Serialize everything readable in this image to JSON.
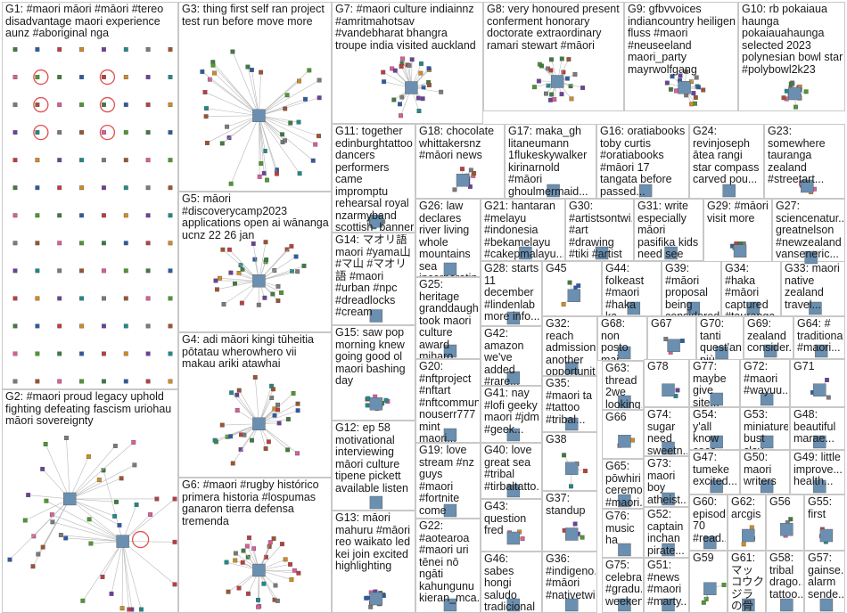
{
  "title": "",
  "colors": {
    "edge": "#b9b9b9",
    "node_palette": [
      "#3b7d3b",
      "#2b5aa8",
      "#c23b3b",
      "#d68a1c",
      "#6b3fa0",
      "#1c8a8a",
      "#7a7a7a",
      "#a0522d",
      "#e05a9a",
      "#4c9a2a"
    ],
    "ring": "#e05050",
    "border": "#c8c8c8"
  },
  "groups": [
    {
      "id": "G1",
      "label": "G1: #maori māori #māori #tereo disadvantage maori experience aunz #aboriginal nga",
      "kind": "grid"
    },
    {
      "id": "G2",
      "label": "G2: #maori proud legacy uphold fighting defeating fascism uriohau māori sovereignty",
      "kind": "double"
    },
    {
      "id": "G3",
      "label": "G3: thing first self ran project test run before move more",
      "kind": "star"
    },
    {
      "id": "G4",
      "label": "G4: adi māori kingi tūheitia pōtatau wherowhero vii makau ariki atawhai",
      "kind": "star"
    },
    {
      "id": "G5",
      "label": "G5: māori #discoverycamp2023 applications open ai wānanga ucnz 22 26 jan",
      "kind": "cluster"
    },
    {
      "id": "G6",
      "label": "G6: #maori #rugby histórico primera historia #lospumas ganaron tierra defensa tremenda",
      "kind": "cluster"
    },
    {
      "id": "G7",
      "label": "G7: #maori culture indiainnz #amritmahotsav #vandebharat bhangra troupe india visited auckland",
      "kind": "cluster"
    },
    {
      "id": "G8",
      "label": "G8: very honoured present conferment honorary doctorate extraordinary ramari stewart #māori",
      "kind": "cluster"
    },
    {
      "id": "G9",
      "label": "G9: gfbvvoices indiancountry heiligen fluss #maori #neuseeland maori_party mayrwolfgang",
      "kind": "cluster"
    },
    {
      "id": "G10",
      "label": "G10: rb pokaiaua haunga pokaiauahaunga selected 2023 polynesian bowl star #polybowl2k23",
      "kind": "cluster"
    },
    {
      "id": "G11",
      "label": "G11: together edinburghtattoo dancers performers came impromptu rehearsal royal nzarmyband scottish_banner",
      "kind": "cluster"
    },
    {
      "id": "G12",
      "label": "G12: ep 58 motivational interviewing māori culture tipene pickett available listen",
      "kind": "cluster"
    },
    {
      "id": "G13",
      "label": "G13: māori mahuru #māori reo waikato led kei join excited highlighting",
      "kind": "cluster"
    },
    {
      "id": "G14",
      "label": "G14: マオリ語 maori #yama山 #マ山 #マオリ語 #maori #urban #npc #dreadlocks #cream",
      "kind": "cluster"
    },
    {
      "id": "G15",
      "label": "G15: saw pop morning knew going good ol maori bashing day",
      "kind": "cluster"
    },
    {
      "id": "G16",
      "label": "G16: oratiabooks toby curtis #oratiabooks #māori 17 tangata before passed...",
      "kind": "cluster"
    },
    {
      "id": "G17",
      "label": "G17: maka_gh litaneumann 1flukeskywalker kirinarnold #māori ghoulmermaid...",
      "kind": "cluster"
    },
    {
      "id": "G18",
      "label": "G18: chocolate whittakersnz #māori news",
      "kind": "cluster"
    },
    {
      "id": "G19",
      "label": "G19: love stream #nz guys #maori #fortnite come support see show",
      "kind": "cluster"
    },
    {
      "id": "G20",
      "label": "G20: #nftproject #nftart #nftcommun... nouserr777 mint maori...",
      "kind": "cluster"
    },
    {
      "id": "G21",
      "label": "G21: hantaran #melayu #indonesia #bekamelayu #cakepmalayu...",
      "kind": "cluster"
    },
    {
      "id": "G22",
      "label": "G22: #aotearoa #maori uri tēnei nō ngāti kahungunu kieran_mca...",
      "kind": "cluster"
    },
    {
      "id": "G23",
      "label": "G23: somewhere tauranga zealand #streetart...",
      "kind": "cluster"
    },
    {
      "id": "G24",
      "label": "G24: revinjoseph ātea rangi star compass carved pou...",
      "kind": "cluster"
    },
    {
      "id": "G25",
      "label": "G25: heritage granddaugh... took maori culture award miharo...",
      "kind": "cluster"
    },
    {
      "id": "G26",
      "label": "G26: law declares river living whole mountains sea incorporatin...",
      "kind": "cluster"
    },
    {
      "id": "G27",
      "label": "G27: sciencenatur... greatnelson #newzealand vanseneric...",
      "kind": "cluster"
    },
    {
      "id": "G28",
      "label": "G28: starts 11 december #lindenlab more info...",
      "kind": "cluster"
    },
    {
      "id": "G29",
      "label": "G29: #māori visit more",
      "kind": "cluster"
    },
    {
      "id": "G30",
      "label": "G30: #artistsontwi... #art #drawing #tiki #artist #artwork...",
      "kind": "cluster"
    },
    {
      "id": "G31",
      "label": "G31: write especially māori pasifika kids need see more...",
      "kind": "cluster"
    },
    {
      "id": "G32",
      "label": "G32: reach admission another opportunit...",
      "kind": "cluster"
    },
    {
      "id": "G33",
      "label": "G33: maori native zealand travel...",
      "kind": "cluster"
    },
    {
      "id": "G34",
      "label": "G34: #haka #māori captured #tauranga...",
      "kind": "cluster"
    },
    {
      "id": "G35",
      "label": "G35: #maori ta #tattoo #tribal...",
      "kind": "cluster"
    },
    {
      "id": "G36",
      "label": "G36: #indigeno... #māori #nativetwi...",
      "kind": "cluster"
    },
    {
      "id": "G37",
      "label": "G37: standup",
      "kind": "cluster"
    },
    {
      "id": "G38",
      "label": "G38",
      "kind": "cluster"
    },
    {
      "id": "G39",
      "label": "G39: #māori proposal being considered...",
      "kind": "cluster"
    },
    {
      "id": "G40",
      "label": "G40: love great sea #tribal #tirbaltatto...",
      "kind": "cluster"
    },
    {
      "id": "G41",
      "label": "G41: nay #lofi geeky maori #jdm #geek...",
      "kind": "cluster"
    },
    {
      "id": "G42",
      "label": "G42: amazon we've added #rare...",
      "kind": "cluster"
    },
    {
      "id": "G43",
      "label": "G43: question fred",
      "kind": "cluster"
    },
    {
      "id": "G44",
      "label": "G44: folkeast #maori #haka ka...",
      "kind": "cluster"
    },
    {
      "id": "G45",
      "label": "G45",
      "kind": "cluster"
    },
    {
      "id": "G46",
      "label": "G46: sabes hongi saludo tradicional maorí...",
      "kind": "cluster"
    },
    {
      "id": "G47",
      "label": "G47: tumeke excited...",
      "kind": "cluster"
    },
    {
      "id": "G48",
      "label": "G48: beautiful marae...",
      "kind": "cluster"
    },
    {
      "id": "G49",
      "label": "G49: little improve... health...",
      "kind": "cluster"
    },
    {
      "id": "G50",
      "label": "G50: maori writers",
      "kind": "cluster"
    },
    {
      "id": "G51",
      "label": "G51: #news #maori #marty...",
      "kind": "cluster"
    },
    {
      "id": "G52",
      "label": "G52: captain inchan pirate...",
      "kind": "cluster"
    },
    {
      "id": "G53",
      "label": "G53: miniature bust clay...",
      "kind": "cluster"
    },
    {
      "id": "G54",
      "label": "G54: y'all know coco solid...",
      "kind": "cluster"
    },
    {
      "id": "G55",
      "label": "G55: first",
      "kind": "cluster"
    },
    {
      "id": "G56",
      "label": "G56",
      "kind": "cluster"
    },
    {
      "id": "G57",
      "label": "G57: gainse... alarm sende...",
      "kind": "cluster"
    },
    {
      "id": "G58",
      "label": "G58: tribal drago... tattoo...",
      "kind": "cluster"
    },
    {
      "id": "G59",
      "label": "G59",
      "kind": "cluster"
    },
    {
      "id": "G60",
      "label": "G60: episode 70 #read...",
      "kind": "cluster"
    },
    {
      "id": "G61",
      "label": "G61: マッコウクジラの骨でハワイ...",
      "kind": "cluster"
    },
    {
      "id": "G62",
      "label": "G62: arcgis",
      "kind": "cluster"
    },
    {
      "id": "G63",
      "label": "G63: thread 2we looking...",
      "kind": "cluster"
    },
    {
      "id": "G64",
      "label": "G64: # traditional #maori...",
      "kind": "cluster"
    },
    {
      "id": "G65",
      "label": "G65: pōwhiri ceremo... #maori...",
      "kind": "cluster"
    },
    {
      "id": "G66",
      "label": "G66",
      "kind": "cluster"
    },
    {
      "id": "G67",
      "label": "G67",
      "kind": "cluster"
    },
    {
      "id": "G68",
      "label": "G68: non posto mai nulla...",
      "kind": "cluster"
    },
    {
      "id": "G69",
      "label": "G69: zealand consider...",
      "kind": "cluster"
    },
    {
      "id": "G70",
      "label": "G70: tanti quest'an... più...",
      "kind": "cluster"
    },
    {
      "id": "G71",
      "label": "G71",
      "kind": "cluster"
    },
    {
      "id": "G72",
      "label": "G72: #maori #wayuu...",
      "kind": "cluster"
    },
    {
      "id": "G73",
      "label": "G73: maori boy atheist...",
      "kind": "cluster"
    },
    {
      "id": "G74",
      "label": "G74: sugar need sweetn...",
      "kind": "cluster"
    },
    {
      "id": "G75",
      "label": "G75: celebra... #gradu... weeken...",
      "kind": "cluster"
    },
    {
      "id": "G76",
      "label": "G76: music ha",
      "kind": "cluster"
    },
    {
      "id": "G77",
      "label": "G77: maybe give site...",
      "kind": "cluster"
    },
    {
      "id": "G78",
      "label": "G78",
      "kind": "cluster"
    }
  ]
}
